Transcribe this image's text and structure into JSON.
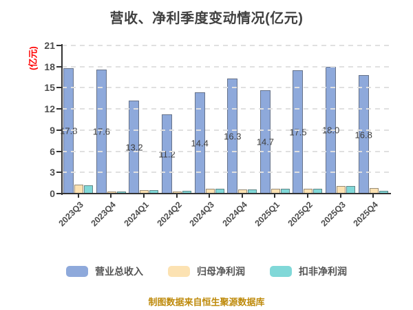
{
  "chart_data": {
    "type": "bar",
    "title": "营收、净利季度变动情况(亿元)",
    "ylabel": "(亿元)",
    "xlabel": "",
    "categories": [
      "2023Q3",
      "2023Q4",
      "2024Q1",
      "2024Q2",
      "2024Q3",
      "2024Q4",
      "2025Q1",
      "2025Q2",
      "2025Q3",
      "2025Q4"
    ],
    "series": [
      {
        "name": "营业总收入",
        "color": "#8EA9DB",
        "values": [
          17.8,
          17.6,
          13.2,
          11.2,
          14.4,
          16.3,
          14.7,
          17.5,
          18.0,
          16.8
        ],
        "labels": [
          "17.8",
          "17.6",
          "13.2",
          "11.2",
          "14.4",
          "16.3",
          "14.7",
          "17.5",
          "18.0",
          "16.8"
        ],
        "show_labels": true
      },
      {
        "name": "归母净利润",
        "color": "#FCE2B2",
        "values": [
          1.25,
          0.3,
          0.45,
          0.3,
          0.7,
          0.55,
          0.65,
          0.65,
          1.1,
          0.75
        ],
        "show_labels": false
      },
      {
        "name": "扣非净利润",
        "color": "#80D8D8",
        "values": [
          1.15,
          0.3,
          0.5,
          0.35,
          0.65,
          0.6,
          0.65,
          0.65,
          1.05,
          0.4
        ],
        "show_labels": false
      }
    ],
    "yticks": [
      0,
      3,
      6,
      9,
      12,
      15,
      18,
      21
    ],
    "ylim": [
      0,
      21
    ],
    "xtick_rotation": 45,
    "grid": "horizontal-dashed-over-bars",
    "legend_position": "bottom"
  },
  "colors": {
    "ylabel_color": "#FF0000",
    "footer_color": "#BE8A0B",
    "grid_color": "#e0e0e0",
    "axis_color": "#333333"
  },
  "footer": {
    "text": "制图数据来自恒生聚源数据库"
  }
}
